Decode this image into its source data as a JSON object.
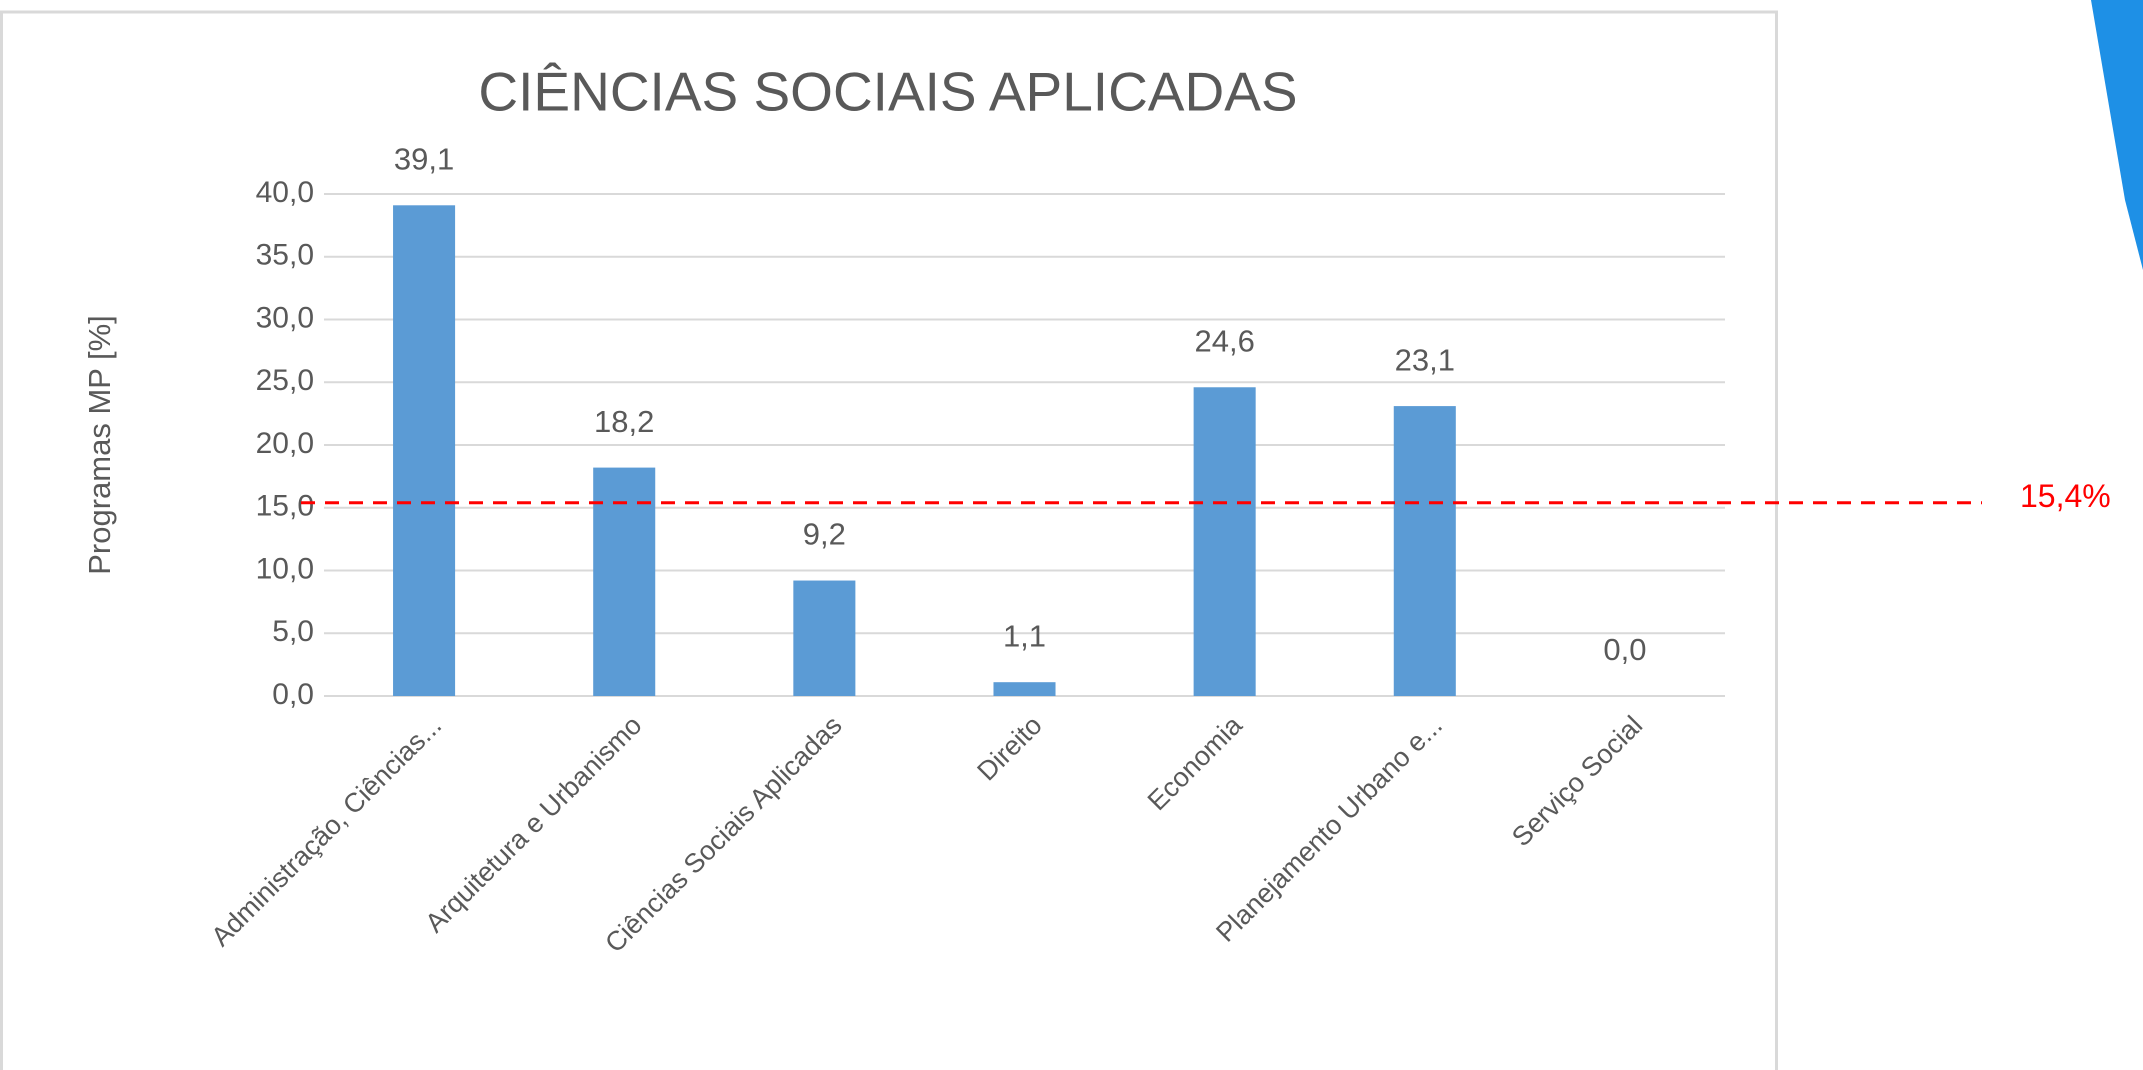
{
  "chart_data": {
    "type": "bar",
    "title": "CIÊNCIAS SOCIAIS APLICADAS",
    "y_label": "Programas MP [%]",
    "categories": [
      "Administração, Ciências...",
      "Arquitetura e Urbanismo",
      "Ciências Sociais Aplicadas",
      "Direito",
      "Economia",
      "Planejamento Urbano e...",
      "Serviço Social"
    ],
    "values": [
      39.1,
      18.2,
      9.2,
      1.1,
      24.6,
      23.1,
      0.0
    ],
    "value_labels": [
      "39,1",
      "18,2",
      "9,2",
      "1,1",
      "24,6",
      "23,1",
      "0,0"
    ],
    "color": "#5b9bd5",
    "ylim": [
      0,
      40
    ],
    "yticks": [
      {
        "value": 0,
        "label": "0,0"
      },
      {
        "value": 5,
        "label": "5,0"
      },
      {
        "value": 10,
        "label": "10,0"
      },
      {
        "value": 15,
        "label": "15,0"
      },
      {
        "value": 20,
        "label": "20,0"
      },
      {
        "value": 25,
        "label": "25,0"
      },
      {
        "value": 30,
        "label": "30,0"
      },
      {
        "value": 35,
        "label": "35,0"
      },
      {
        "value": 40,
        "label": "40,0"
      }
    ],
    "grid": true,
    "reference_line": {
      "value": 15.4,
      "label": "15,4%",
      "color": "#ff0000"
    }
  }
}
